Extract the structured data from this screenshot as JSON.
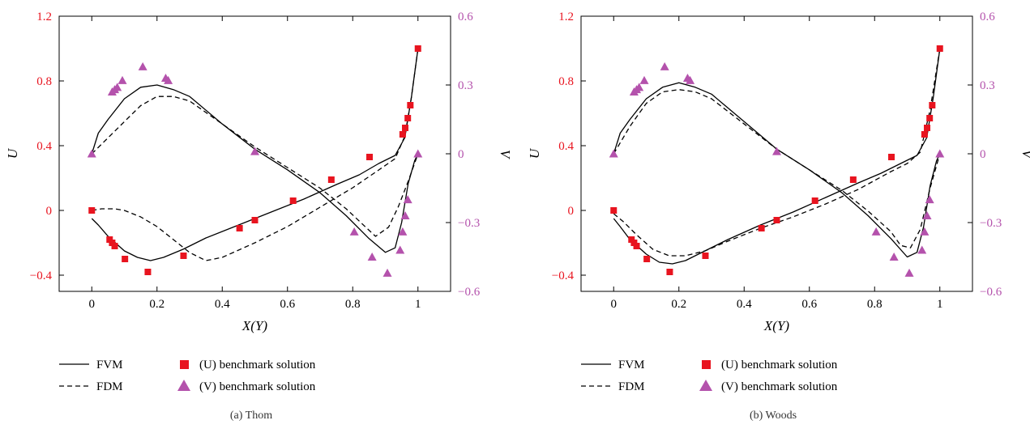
{
  "colors": {
    "u_axis": "#e8141f",
    "v_axis": "#b452ac",
    "u_marker": "#e8141f",
    "v_marker": "#b452ac",
    "line": "#000000"
  },
  "legend": {
    "fvm": "FVM",
    "fdm": "FDM",
    "u_bench": "(U) benchmark solution",
    "v_bench": "(V) benchmark solution"
  },
  "chart_data": [
    {
      "type": "line",
      "caption": "(a)  Thom",
      "xlabel": "X(Y)",
      "ylabel_left": "U",
      "ylabel_right": "V",
      "xlim": [
        -0.1,
        1.1
      ],
      "ylim_left": [
        -0.5,
        1.2
      ],
      "ylim_right": [
        -0.6,
        0.6
      ],
      "xticks": [
        0,
        0.2,
        0.4,
        0.6,
        0.8,
        1
      ],
      "yticks_left": [
        -0.4,
        0,
        0.4,
        0.8,
        1.2
      ],
      "yticks_right": [
        -0.6,
        -0.3,
        0,
        0.3,
        0.6
      ],
      "legend_placement": "bottom",
      "series": [
        {
          "name": "FVM",
          "axis": "left",
          "style": "solid",
          "x": [
            0,
            0.02,
            0.05,
            0.1,
            0.14,
            0.18,
            0.22,
            0.28,
            0.35,
            0.45,
            0.55,
            0.65,
            0.75,
            0.82,
            0.88,
            0.93,
            0.96,
            0.98,
            1.0
          ],
          "y": [
            -0.05,
            -0.09,
            -0.16,
            -0.25,
            -0.29,
            -0.31,
            -0.29,
            -0.24,
            -0.17,
            -0.09,
            -0.01,
            0.07,
            0.16,
            0.22,
            0.29,
            0.34,
            0.45,
            0.7,
            1.0
          ]
        },
        {
          "name": "FDM",
          "axis": "left",
          "style": "dashed",
          "x": [
            0,
            0.03,
            0.07,
            0.1,
            0.15,
            0.2,
            0.25,
            0.3,
            0.35,
            0.4,
            0.5,
            0.6,
            0.7,
            0.8,
            0.88,
            0.93,
            0.96,
            0.98,
            1.0
          ],
          "y": [
            0.0,
            0.01,
            0.01,
            0.0,
            -0.04,
            -0.1,
            -0.18,
            -0.26,
            -0.31,
            -0.29,
            -0.2,
            -0.1,
            0.02,
            0.14,
            0.25,
            0.32,
            0.46,
            0.7,
            1.0
          ]
        },
        {
          "name": "FVM",
          "axis": "right",
          "style": "solid",
          "x": [
            0,
            0.02,
            0.05,
            0.1,
            0.15,
            0.2,
            0.25,
            0.3,
            0.4,
            0.5,
            0.6,
            0.7,
            0.78,
            0.85,
            0.9,
            0.93,
            0.95,
            0.97,
            0.99,
            1.0
          ],
          "y": [
            0.0,
            0.09,
            0.15,
            0.24,
            0.29,
            0.3,
            0.28,
            0.25,
            0.13,
            0.02,
            -0.07,
            -0.17,
            -0.27,
            -0.37,
            -0.43,
            -0.41,
            -0.3,
            -0.13,
            -0.03,
            0.0
          ]
        },
        {
          "name": "FDM",
          "axis": "right",
          "style": "dashed",
          "x": [
            0,
            0.05,
            0.1,
            0.15,
            0.2,
            0.25,
            0.3,
            0.4,
            0.5,
            0.6,
            0.7,
            0.78,
            0.84,
            0.87,
            0.91,
            0.94,
            0.97,
            1.0
          ],
          "y": [
            0.0,
            0.07,
            0.14,
            0.21,
            0.25,
            0.25,
            0.23,
            0.13,
            0.03,
            -0.06,
            -0.15,
            -0.24,
            -0.32,
            -0.36,
            -0.32,
            -0.23,
            -0.12,
            0.0
          ]
        },
        {
          "name": "(U) benchmark solution",
          "axis": "left",
          "style": "square",
          "x": [
            0.0,
            0.0547,
            0.0625,
            0.0703,
            0.1016,
            0.1719,
            0.2813,
            0.4531,
            0.5,
            0.6172,
            0.7344,
            0.8516,
            0.9531,
            0.9609,
            0.9688,
            0.9766,
            1.0
          ],
          "y": [
            0.0,
            -0.18,
            -0.2,
            -0.22,
            -0.3,
            -0.38,
            -0.28,
            -0.11,
            -0.06,
            0.06,
            0.19,
            0.33,
            0.47,
            0.51,
            0.57,
            0.65,
            1.0
          ]
        },
        {
          "name": "(V) benchmark solution",
          "axis": "right",
          "style": "triangle",
          "x": [
            0.0,
            0.0625,
            0.0703,
            0.0781,
            0.0938,
            0.1563,
            0.2266,
            0.2344,
            0.5,
            0.8047,
            0.8594,
            0.9063,
            0.9453,
            0.9531,
            0.9609,
            0.9688,
            1.0
          ],
          "y": [
            0.0,
            0.27,
            0.28,
            0.29,
            0.32,
            0.38,
            0.33,
            0.32,
            0.01,
            -0.34,
            -0.45,
            -0.52,
            -0.42,
            -0.34,
            -0.27,
            -0.2,
            0.0
          ]
        }
      ]
    },
    {
      "type": "line",
      "caption": "(b)  Woods",
      "xlabel": "X(Y)",
      "ylabel_left": "U",
      "ylabel_right": "V",
      "xlim": [
        -0.1,
        1.1
      ],
      "ylim_left": [
        -0.5,
        1.2
      ],
      "ylim_right": [
        -0.6,
        0.6
      ],
      "xticks": [
        0,
        0.2,
        0.4,
        0.6,
        0.8,
        1
      ],
      "yticks_left": [
        -0.4,
        0,
        0.4,
        0.8,
        1.2
      ],
      "yticks_right": [
        -0.6,
        -0.3,
        0,
        0.3,
        0.6
      ],
      "legend_placement": "bottom",
      "series": [
        {
          "name": "FVM",
          "axis": "left",
          "style": "solid",
          "x": [
            0,
            0.02,
            0.05,
            0.1,
            0.14,
            0.18,
            0.22,
            0.28,
            0.35,
            0.45,
            0.55,
            0.65,
            0.75,
            0.82,
            0.88,
            0.93,
            0.96,
            0.98,
            1.0
          ],
          "y": [
            -0.05,
            -0.1,
            -0.18,
            -0.27,
            -0.32,
            -0.33,
            -0.31,
            -0.25,
            -0.18,
            -0.09,
            -0.01,
            0.08,
            0.17,
            0.23,
            0.29,
            0.34,
            0.45,
            0.7,
            1.0
          ]
        },
        {
          "name": "FDM",
          "axis": "left",
          "style": "dashed",
          "x": [
            0,
            0.03,
            0.07,
            0.12,
            0.17,
            0.22,
            0.28,
            0.35,
            0.45,
            0.55,
            0.65,
            0.75,
            0.85,
            0.9,
            0.94,
            0.97,
            1.0
          ],
          "y": [
            -0.02,
            -0.07,
            -0.15,
            -0.24,
            -0.28,
            -0.28,
            -0.25,
            -0.19,
            -0.11,
            -0.04,
            0.04,
            0.13,
            0.24,
            0.29,
            0.36,
            0.62,
            1.0
          ]
        },
        {
          "name": "FVM",
          "axis": "right",
          "style": "solid",
          "x": [
            0,
            0.02,
            0.05,
            0.1,
            0.15,
            0.2,
            0.25,
            0.3,
            0.4,
            0.5,
            0.6,
            0.7,
            0.78,
            0.85,
            0.9,
            0.93,
            0.95,
            0.97,
            0.99,
            1.0
          ],
          "y": [
            0.0,
            0.09,
            0.15,
            0.24,
            0.29,
            0.31,
            0.29,
            0.26,
            0.14,
            0.02,
            -0.07,
            -0.17,
            -0.27,
            -0.37,
            -0.45,
            -0.43,
            -0.32,
            -0.14,
            -0.03,
            0.0
          ]
        },
        {
          "name": "FDM",
          "axis": "right",
          "style": "dashed",
          "x": [
            0,
            0.05,
            0.1,
            0.15,
            0.2,
            0.25,
            0.3,
            0.4,
            0.5,
            0.6,
            0.7,
            0.78,
            0.85,
            0.88,
            0.91,
            0.94,
            0.97,
            1.0
          ],
          "y": [
            0.0,
            0.12,
            0.22,
            0.27,
            0.28,
            0.27,
            0.24,
            0.13,
            0.02,
            -0.07,
            -0.16,
            -0.25,
            -0.34,
            -0.4,
            -0.41,
            -0.33,
            -0.15,
            0.0
          ]
        },
        {
          "name": "(U) benchmark solution",
          "axis": "left",
          "style": "square",
          "x": [
            0.0,
            0.0547,
            0.0625,
            0.0703,
            0.1016,
            0.1719,
            0.2813,
            0.4531,
            0.5,
            0.6172,
            0.7344,
            0.8516,
            0.9531,
            0.9609,
            0.9688,
            0.9766,
            1.0
          ],
          "y": [
            0.0,
            -0.18,
            -0.2,
            -0.22,
            -0.3,
            -0.38,
            -0.28,
            -0.11,
            -0.06,
            0.06,
            0.19,
            0.33,
            0.47,
            0.51,
            0.57,
            0.65,
            1.0
          ]
        },
        {
          "name": "(V) benchmark solution",
          "axis": "right",
          "style": "triangle",
          "x": [
            0.0,
            0.0625,
            0.0703,
            0.0781,
            0.0938,
            0.1563,
            0.2266,
            0.2344,
            0.5,
            0.8047,
            0.8594,
            0.9063,
            0.9453,
            0.9531,
            0.9609,
            0.9688,
            1.0
          ],
          "y": [
            0.0,
            0.27,
            0.28,
            0.29,
            0.32,
            0.38,
            0.33,
            0.32,
            0.01,
            -0.34,
            -0.45,
            -0.52,
            -0.42,
            -0.34,
            -0.27,
            -0.2,
            0.0
          ]
        }
      ]
    }
  ]
}
